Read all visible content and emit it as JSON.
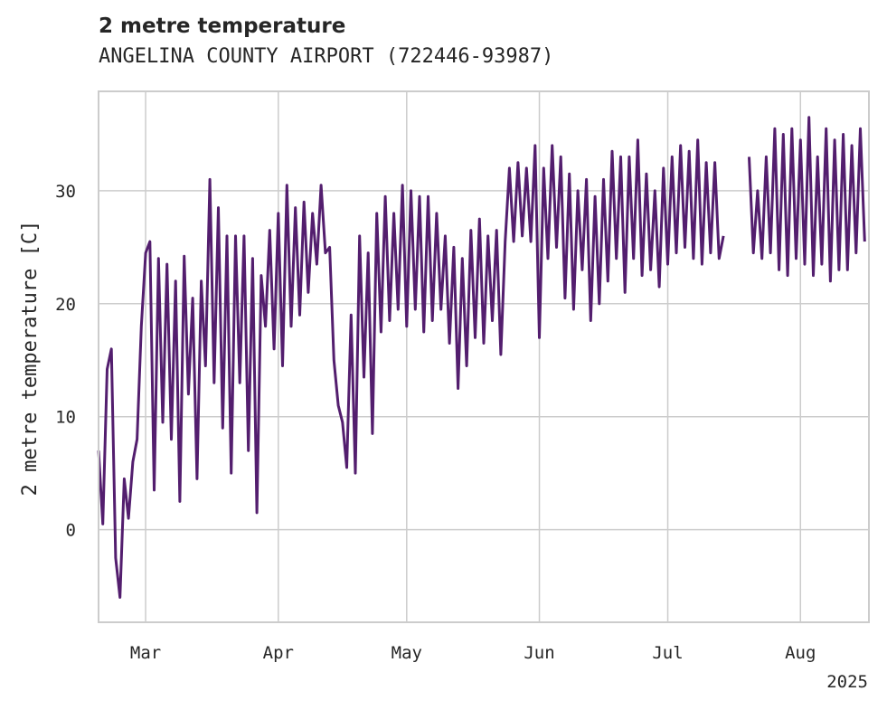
{
  "title": "2 metre temperature",
  "subtitle": "ANGELINA COUNTY AIRPORT (722446-93987)",
  "colors": {
    "line": "#531e6e",
    "grid": "#cccccc",
    "frame": "#cccccc",
    "text": "#262626"
  },
  "chart_data": {
    "type": "line",
    "title": "2 metre temperature",
    "subtitle": "ANGELINA COUNTY AIRPORT (722446-93987)",
    "xlabel": "",
    "ylabel": "2 metre temperature [C]",
    "x_tick_labels": [
      "Mar",
      "Apr",
      "May",
      "Jun",
      "Jul",
      "Aug"
    ],
    "x_tick_dates": [
      "2025-03-01",
      "2025-04-01",
      "2025-05-01",
      "2025-06-01",
      "2025-07-01",
      "2025-08-01"
    ],
    "x_offset_label": "2025",
    "xlim": [
      "2025-02-18",
      "2025-08-17"
    ],
    "ylim": [
      -8.2,
      38.8
    ],
    "y_ticks": [
      0,
      10,
      20,
      30
    ],
    "grid": true,
    "legend": "none",
    "series": [
      {
        "values": [
          [
            "2025-02-18",
            7.0
          ],
          [
            "2025-02-19",
            0.5
          ],
          [
            "2025-02-20",
            14.2
          ],
          [
            "2025-02-21",
            16.0
          ],
          [
            "2025-02-22",
            -2.5
          ],
          [
            "2025-02-23",
            -6.0
          ],
          [
            "2025-02-24",
            4.5
          ],
          [
            "2025-02-25",
            1.0
          ],
          [
            "2025-02-26",
            6.0
          ],
          [
            "2025-02-27",
            8.0
          ],
          [
            "2025-02-28",
            18.0
          ],
          [
            "2025-03-01",
            24.5
          ],
          [
            "2025-03-02",
            25.5
          ],
          [
            "2025-03-03",
            3.5
          ],
          [
            "2025-03-04",
            24.0
          ],
          [
            "2025-03-05",
            9.5
          ],
          [
            "2025-03-06",
            23.5
          ],
          [
            "2025-03-07",
            8.0
          ],
          [
            "2025-03-08",
            22.0
          ],
          [
            "2025-03-09",
            2.5
          ],
          [
            "2025-03-10",
            24.2
          ],
          [
            "2025-03-11",
            12.0
          ],
          [
            "2025-03-12",
            20.5
          ],
          [
            "2025-03-13",
            4.5
          ],
          [
            "2025-03-14",
            22.0
          ],
          [
            "2025-03-15",
            14.5
          ],
          [
            "2025-03-16",
            31.0
          ],
          [
            "2025-03-17",
            13.0
          ],
          [
            "2025-03-18",
            28.5
          ],
          [
            "2025-03-19",
            9.0
          ],
          [
            "2025-03-20",
            26.0
          ],
          [
            "2025-03-21",
            5.0
          ],
          [
            "2025-03-22",
            26.0
          ],
          [
            "2025-03-23",
            13.0
          ],
          [
            "2025-03-24",
            26.0
          ],
          [
            "2025-03-25",
            7.0
          ],
          [
            "2025-03-26",
            24.0
          ],
          [
            "2025-03-27",
            1.5
          ],
          [
            "2025-03-28",
            22.5
          ],
          [
            "2025-03-29",
            18.0
          ],
          [
            "2025-03-30",
            26.5
          ],
          [
            "2025-03-31",
            16.0
          ],
          [
            "2025-04-01",
            28.0
          ],
          [
            "2025-04-02",
            14.5
          ],
          [
            "2025-04-03",
            30.5
          ],
          [
            "2025-04-04",
            18.0
          ],
          [
            "2025-04-05",
            28.5
          ],
          [
            "2025-04-06",
            19.0
          ],
          [
            "2025-04-07",
            29.0
          ],
          [
            "2025-04-08",
            21.0
          ],
          [
            "2025-04-09",
            28.0
          ],
          [
            "2025-04-10",
            23.5
          ],
          [
            "2025-04-11",
            30.5
          ],
          [
            "2025-04-12",
            24.5
          ],
          [
            "2025-04-13",
            25.0
          ],
          [
            "2025-04-14",
            15.0
          ],
          [
            "2025-04-15",
            11.0
          ],
          [
            "2025-04-16",
            9.5
          ],
          [
            "2025-04-17",
            5.5
          ],
          [
            "2025-04-18",
            19.0
          ],
          [
            "2025-04-19",
            5.0
          ],
          [
            "2025-04-20",
            26.0
          ],
          [
            "2025-04-21",
            13.5
          ],
          [
            "2025-04-22",
            24.5
          ],
          [
            "2025-04-23",
            8.5
          ],
          [
            "2025-04-24",
            28.0
          ],
          [
            "2025-04-25",
            17.5
          ],
          [
            "2025-04-26",
            29.5
          ],
          [
            "2025-04-27",
            18.5
          ],
          [
            "2025-04-28",
            28.0
          ],
          [
            "2025-04-29",
            19.5
          ],
          [
            "2025-04-30",
            30.5
          ],
          [
            "2025-05-01",
            18.0
          ],
          [
            "2025-05-02",
            30.0
          ],
          [
            "2025-05-03",
            19.5
          ],
          [
            "2025-05-04",
            29.5
          ],
          [
            "2025-05-05",
            17.5
          ],
          [
            "2025-05-06",
            29.5
          ],
          [
            "2025-05-07",
            18.5
          ],
          [
            "2025-05-08",
            28.0
          ],
          [
            "2025-05-09",
            19.5
          ],
          [
            "2025-05-10",
            26.0
          ],
          [
            "2025-05-11",
            16.5
          ],
          [
            "2025-05-12",
            25.0
          ],
          [
            "2025-05-13",
            12.5
          ],
          [
            "2025-05-14",
            24.0
          ],
          [
            "2025-05-15",
            14.5
          ],
          [
            "2025-05-16",
            26.5
          ],
          [
            "2025-05-17",
            17.0
          ],
          [
            "2025-05-18",
            27.5
          ],
          [
            "2025-05-19",
            16.5
          ],
          [
            "2025-05-20",
            26.0
          ],
          [
            "2025-05-21",
            18.5
          ],
          [
            "2025-05-22",
            26.5
          ],
          [
            "2025-05-23",
            15.5
          ],
          [
            "2025-05-24",
            25.5
          ],
          [
            "2025-05-25",
            32.0
          ],
          [
            "2025-05-26",
            25.5
          ],
          [
            "2025-05-27",
            32.5
          ],
          [
            "2025-05-28",
            26.0
          ],
          [
            "2025-05-29",
            32.0
          ],
          [
            "2025-05-30",
            25.5
          ],
          [
            "2025-05-31",
            34.0
          ],
          [
            "2025-06-01",
            17.0
          ],
          [
            "2025-06-02",
            32.0
          ],
          [
            "2025-06-03",
            24.0
          ],
          [
            "2025-06-04",
            34.0
          ],
          [
            "2025-06-05",
            25.0
          ],
          [
            "2025-06-06",
            33.0
          ],
          [
            "2025-06-07",
            20.5
          ],
          [
            "2025-06-08",
            31.5
          ],
          [
            "2025-06-09",
            19.5
          ],
          [
            "2025-06-10",
            30.0
          ],
          [
            "2025-06-11",
            23.0
          ],
          [
            "2025-06-12",
            31.0
          ],
          [
            "2025-06-13",
            18.5
          ],
          [
            "2025-06-14",
            29.5
          ],
          [
            "2025-06-15",
            20.0
          ],
          [
            "2025-06-16",
            31.0
          ],
          [
            "2025-06-17",
            22.0
          ],
          [
            "2025-06-18",
            33.5
          ],
          [
            "2025-06-19",
            24.0
          ],
          [
            "2025-06-20",
            33.0
          ],
          [
            "2025-06-21",
            21.0
          ],
          [
            "2025-06-22",
            33.0
          ],
          [
            "2025-06-23",
            24.0
          ],
          [
            "2025-06-24",
            34.5
          ],
          [
            "2025-06-25",
            22.5
          ],
          [
            "2025-06-26",
            31.5
          ],
          [
            "2025-06-27",
            23.0
          ],
          [
            "2025-06-28",
            30.0
          ],
          [
            "2025-06-29",
            21.5
          ],
          [
            "2025-06-30",
            32.0
          ],
          [
            "2025-07-01",
            23.5
          ],
          [
            "2025-07-02",
            33.0
          ],
          [
            "2025-07-03",
            24.5
          ],
          [
            "2025-07-04",
            34.0
          ],
          [
            "2025-07-05",
            25.0
          ],
          [
            "2025-07-06",
            33.5
          ],
          [
            "2025-07-07",
            24.0
          ],
          [
            "2025-07-08",
            34.5
          ],
          [
            "2025-07-09",
            23.5
          ],
          [
            "2025-07-10",
            32.5
          ],
          [
            "2025-07-11",
            24.5
          ],
          [
            "2025-07-12",
            32.5
          ],
          [
            "2025-07-13",
            24.0
          ],
          [
            "2025-07-14",
            26.0
          ],
          [
            "2025-07-15",
            null
          ],
          [
            "2025-07-20",
            33.0
          ],
          [
            "2025-07-21",
            24.5
          ],
          [
            "2025-07-22",
            30.0
          ],
          [
            "2025-07-23",
            24.0
          ],
          [
            "2025-07-24",
            33.0
          ],
          [
            "2025-07-25",
            24.5
          ],
          [
            "2025-07-26",
            35.5
          ],
          [
            "2025-07-27",
            23.0
          ],
          [
            "2025-07-28",
            35.0
          ],
          [
            "2025-07-29",
            22.5
          ],
          [
            "2025-07-30",
            35.5
          ],
          [
            "2025-07-31",
            24.0
          ],
          [
            "2025-08-01",
            34.5
          ],
          [
            "2025-08-02",
            23.5
          ],
          [
            "2025-08-03",
            36.5
          ],
          [
            "2025-08-04",
            22.5
          ],
          [
            "2025-08-05",
            33.0
          ],
          [
            "2025-08-06",
            23.5
          ],
          [
            "2025-08-07",
            35.5
          ],
          [
            "2025-08-08",
            22.0
          ],
          [
            "2025-08-09",
            34.5
          ],
          [
            "2025-08-10",
            23.0
          ],
          [
            "2025-08-11",
            35.0
          ],
          [
            "2025-08-12",
            23.0
          ],
          [
            "2025-08-13",
            34.0
          ],
          [
            "2025-08-14",
            24.5
          ],
          [
            "2025-08-15",
            35.5
          ],
          [
            "2025-08-16",
            25.5
          ]
        ]
      }
    ]
  }
}
